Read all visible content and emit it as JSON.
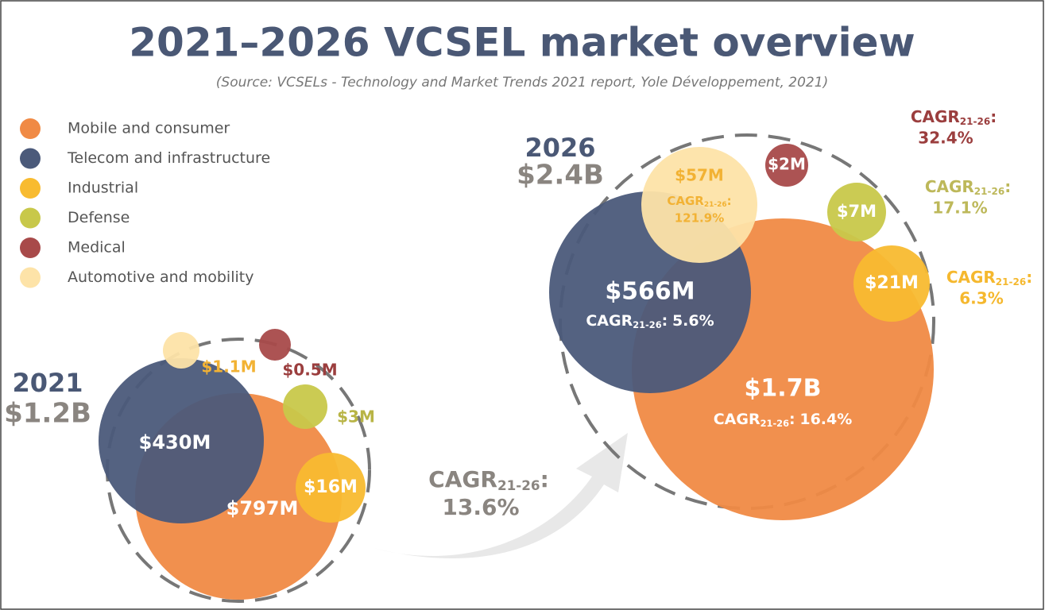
{
  "title": "2021–2026 VCSEL market overview",
  "source": "(Source: VCSELs - Technology and Market Trends 2021 report, Yole Développement, 2021)",
  "legend": [
    {
      "label": "Mobile and consumer",
      "color": "#f08a45"
    },
    {
      "label": "Telecom and infrastructure",
      "color": "#4b5a7a"
    },
    {
      "label": "Industrial",
      "color": "#f8bb30"
    },
    {
      "label": "Defense",
      "color": "#c8c84a"
    },
    {
      "label": "Medical",
      "color": "#a84a4a"
    },
    {
      "label": "Automotive and mobility",
      "color": "#fde3a8"
    }
  ],
  "cagr": {
    "label": "CAGR",
    "period": "21-26",
    "colon": ":"
  },
  "years": [
    {
      "year": "2021",
      "total": "$1.2B",
      "segments": [
        {
          "value": "$797M"
        },
        {
          "value": "$430M"
        },
        {
          "value": "$16M"
        },
        {
          "value": "$3M"
        },
        {
          "value": "$0.5M"
        },
        {
          "value": "$1.1M"
        }
      ]
    },
    {
      "year": "2026",
      "total": "$2.4B",
      "segments": [
        {
          "value": "$1.7B",
          "cagr": "16.4%"
        },
        {
          "value": "$566M",
          "cagr": "5.6%"
        },
        {
          "value": "$21M",
          "cagr": "6.3%"
        },
        {
          "value": "$7M",
          "cagr": "17.1%"
        },
        {
          "value": "$2M",
          "cagr": "32.4%"
        },
        {
          "value": "$57M",
          "cagr": "121.9%"
        }
      ]
    }
  ],
  "overall_cagr": "13.6%"
}
